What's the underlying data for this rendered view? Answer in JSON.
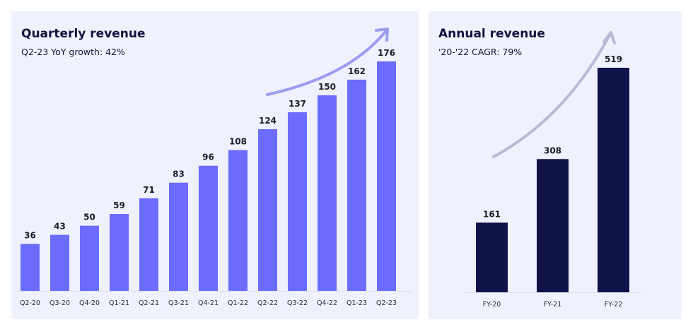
{
  "chart_data": [
    {
      "type": "bar",
      "title": "Quarterly revenue",
      "subtitle": "Q2-23 YoY growth: 42%",
      "categories": [
        "Q2-20",
        "Q3-20",
        "Q4-20",
        "Q1-21",
        "Q2-21",
        "Q3-21",
        "Q4-21",
        "Q1-22",
        "Q2-22",
        "Q3-22",
        "Q4-22",
        "Q1-23",
        "Q2-23"
      ],
      "values": [
        36,
        43,
        50,
        59,
        71,
        83,
        96,
        108,
        124,
        137,
        150,
        162,
        176
      ],
      "data_labels": [
        "36",
        "43",
        "50",
        "59",
        "71",
        "83",
        "96",
        "108",
        "124",
        "137",
        "150",
        "162",
        "176"
      ],
      "xlabel": "",
      "ylabel": "",
      "ylim": [
        0,
        176
      ],
      "grid": false,
      "bar_color": "#6c6cfc",
      "arrow_color": "#9c9cf0"
    },
    {
      "type": "bar",
      "title": "Annual revenue",
      "subtitle": "'20-'22 CAGR: 79%",
      "categories": [
        "FY-20",
        "FY-21",
        "FY-22"
      ],
      "values": [
        161,
        308,
        519
      ],
      "data_labels": [
        "161",
        "308",
        "519"
      ],
      "xlabel": "",
      "ylabel": "",
      "ylim": [
        0,
        519
      ],
      "grid": false,
      "bar_color": "#10124a",
      "arrow_color": "#b9bbd6"
    }
  ]
}
